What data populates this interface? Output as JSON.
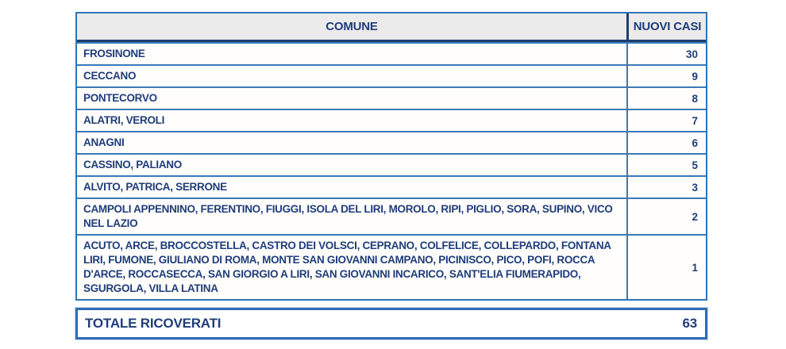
{
  "table": {
    "headers": {
      "comune": "COMUNE",
      "nuovi_casi": "NUOVI CASI"
    },
    "rows": [
      {
        "comune": "FROSINONE",
        "nuovi_casi": "30"
      },
      {
        "comune": "CECCANO",
        "nuovi_casi": "9"
      },
      {
        "comune": "PONTECORVO",
        "nuovi_casi": "8"
      },
      {
        "comune": "ALATRI, VEROLI",
        "nuovi_casi": "7"
      },
      {
        "comune": "ANAGNI",
        "nuovi_casi": "6"
      },
      {
        "comune": "CASSINO, PALIANO",
        "nuovi_casi": "5"
      },
      {
        "comune": "ALVITO, PATRICA, SERRONE",
        "nuovi_casi": "3"
      },
      {
        "comune": "CAMPOLI APPENNINO, FERENTINO, FIUGGI, ISOLA DEL LIRI, MOROLO, RIPI, PIGLIO, SORA, SUPINO, VICO NEL LAZIO",
        "nuovi_casi": "2"
      },
      {
        "comune": "ACUTO, ARCE, BROCCOSTELLA, CASTRO DEI VOLSCI, CEPRANO, COLFELICE, COLLEPARDO, FONTANA LIRI, FUMONE, GIULIANO DI ROMA, MONTE SAN GIOVANNI CAMPANO, PICINISCO, PICO, POFI, ROCCA D'ARCE, ROCCASECCA, SAN GIORGIO A LIRI, SAN GIOVANNI INCARICO, SANT'ELIA FIUMERAPIDO, SGURGOLA, VILLA LATINA",
        "nuovi_casi": "1"
      }
    ],
    "footer": {
      "label": "TOTALE RICOVERATI",
      "value": "63"
    }
  },
  "colors": {
    "text_navy": "#1F3D7A",
    "border_blue": "#2E75B6",
    "header_bg": "#EBEBEB",
    "header_rule_navy": "#1C3E6E"
  }
}
